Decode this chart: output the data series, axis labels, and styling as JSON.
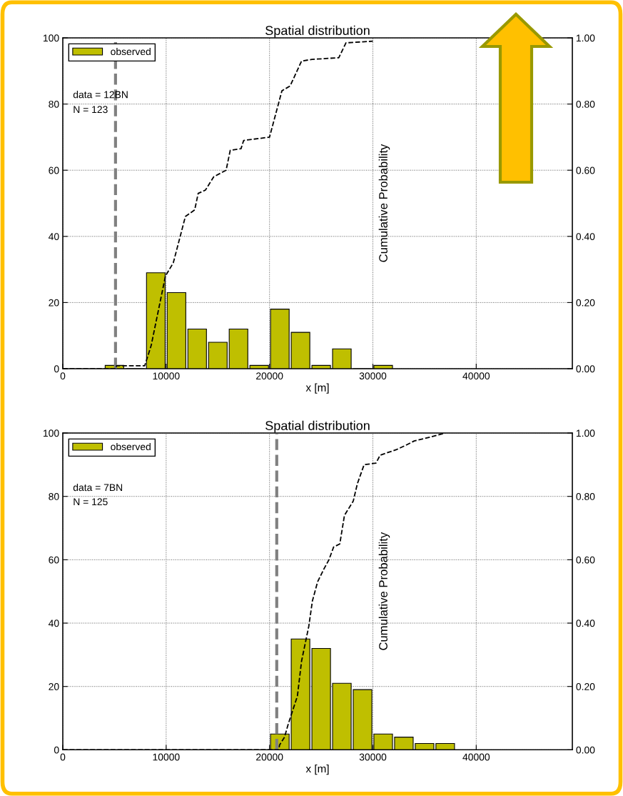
{
  "chart_data": [
    {
      "type": "histogram",
      "title": "Spatial distribution",
      "xlabel": "x [m]",
      "y2label": "Cumulative Probability",
      "bins": [
        4000,
        6000,
        8000,
        10000,
        12000,
        14000,
        16000,
        18000,
        20000,
        22000,
        24000,
        26000,
        28000,
        30000,
        32000
      ],
      "series": [
        {
          "type": "histogram",
          "name": "observed",
          "color": "#bfbf00",
          "values": [
            1,
            0,
            29,
            23,
            12,
            8,
            12,
            1,
            18,
            11,
            1,
            6,
            0,
            1
          ]
        },
        {
          "type": "line",
          "axis": "y2",
          "color": "#000000",
          "line_style": "dashed",
          "x": [
            0,
            5100,
            5200,
            7930,
            8550,
            9930,
            10690,
            11860,
            12760,
            13100,
            13800,
            14600,
            15800,
            16200,
            17240,
            17500,
            20000,
            21200,
            22000,
            23100,
            24100,
            26700,
            27400,
            30000
          ],
          "values": [
            0,
            0,
            0.009,
            0.009,
            0.07,
            0.28,
            0.32,
            0.46,
            0.48,
            0.53,
            0.54,
            0.58,
            0.6,
            0.66,
            0.665,
            0.69,
            0.7,
            0.84,
            0.855,
            0.93,
            0.935,
            0.94,
            0.985,
            0.99
          ]
        }
      ],
      "xlim": [
        0,
        49300
      ],
      "xticks": [
        0,
        10000,
        20000,
        30000,
        40000
      ],
      "ylim": [
        0,
        100
      ],
      "yticks": [
        0,
        20,
        40,
        60,
        80,
        100
      ],
      "y2lim": [
        0,
        1
      ],
      "y2ticks": [
        {
          "value": 0,
          "label": "0.00"
        },
        {
          "value": 0.2,
          "label": "0.20"
        },
        {
          "value": 0.4,
          "label": "0.40"
        },
        {
          "value": 0.6,
          "label": "0.60"
        },
        {
          "value": 0.8,
          "label": "0.80"
        },
        {
          "value": 1,
          "label": "1.00"
        }
      ],
      "ref_lines": [
        {
          "axis": "x",
          "value": 5100,
          "color": "#808080",
          "line_style": "dashed"
        }
      ],
      "annotations": [
        "data = 12BN",
        "N = 123"
      ],
      "grid": true,
      "legend": "top left"
    },
    {
      "type": "histogram",
      "title": "Spatial distribution",
      "xlabel": "x [m]",
      "y2label": "Cumulative Probability",
      "bins": [
        20000,
        22000,
        24000,
        26000,
        28000,
        30000,
        32000,
        34000,
        36000,
        38000
      ],
      "series": [
        {
          "type": "histogram",
          "name": "observed",
          "color": "#bfbf00",
          "values": [
            5,
            35,
            32,
            21,
            19,
            5,
            4,
            2,
            2
          ]
        },
        {
          "type": "line",
          "axis": "y2",
          "color": "#000000",
          "line_style": "dashed",
          "x": [
            0,
            20900,
            20970,
            21450,
            21800,
            22700,
            23100,
            23800,
            24150,
            24650,
            25250,
            25750,
            26200,
            26800,
            27250,
            28100,
            28500,
            29150,
            30300,
            30700,
            32300,
            33100,
            34000,
            35500,
            37000
          ],
          "values": [
            0,
            0,
            0.015,
            0.04,
            0.08,
            0.17,
            0.28,
            0.39,
            0.47,
            0.53,
            0.57,
            0.6,
            0.64,
            0.65,
            0.74,
            0.785,
            0.84,
            0.9,
            0.905,
            0.93,
            0.948,
            0.96,
            0.975,
            0.987,
            1.0
          ]
        }
      ],
      "xlim": [
        0,
        49300
      ],
      "xticks": [
        0,
        10000,
        20000,
        30000,
        40000
      ],
      "ylim": [
        0,
        100
      ],
      "yticks": [
        0,
        20,
        40,
        60,
        80,
        100
      ],
      "y2lim": [
        0,
        1
      ],
      "y2ticks": [
        {
          "value": 0,
          "label": "0.00"
        },
        {
          "value": 0.2,
          "label": "0.20"
        },
        {
          "value": 0.4,
          "label": "0.40"
        },
        {
          "value": 0.6,
          "label": "0.60"
        },
        {
          "value": 0.8,
          "label": "0.80"
        },
        {
          "value": 1,
          "label": "1.00"
        }
      ],
      "ref_lines": [
        {
          "axis": "x",
          "value": 20700,
          "color": "#808080",
          "line_style": "dashed"
        }
      ],
      "annotations": [
        "data = 7BN",
        "N = 125"
      ],
      "grid": true,
      "legend": "top left"
    }
  ]
}
